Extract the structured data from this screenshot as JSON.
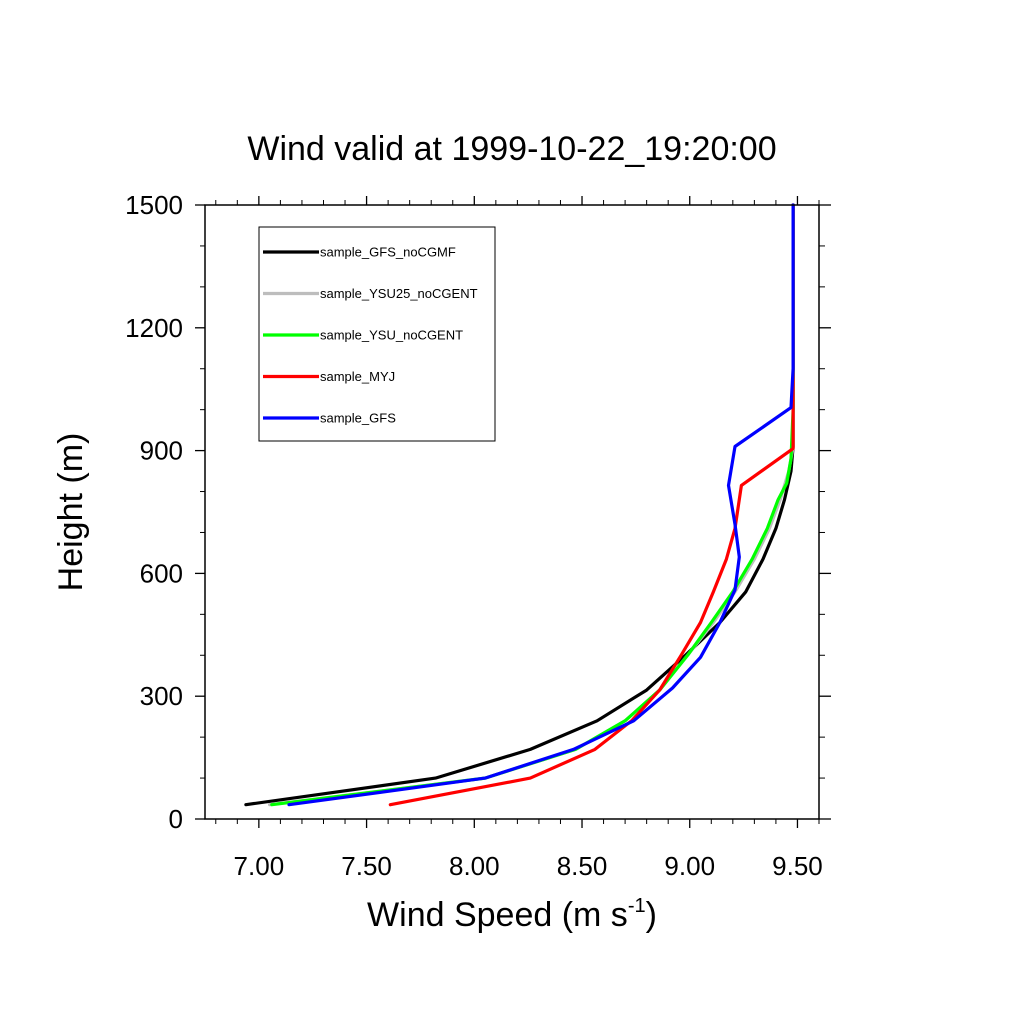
{
  "chart_data": {
    "type": "line",
    "title": "Wind valid at 1999-10-22_19:20:00",
    "xlabel_main": "Wind Speed (m s",
    "xlabel_sup": "-1",
    "xlabel_close": ")",
    "ylabel": "Height (m)",
    "xlim": [
      6.75,
      9.6
    ],
    "ylim": [
      0,
      1500
    ],
    "x_ticks": [
      7.0,
      7.5,
      8.0,
      8.5,
      9.0,
      9.5
    ],
    "x_tick_labels": [
      "7.00",
      "7.50",
      "8.00",
      "8.50",
      "9.00",
      "9.50"
    ],
    "y_ticks": [
      0,
      300,
      600,
      900,
      1200,
      1500
    ],
    "y_tick_labels": [
      "0",
      "300",
      "600",
      "900",
      "1200",
      "1500"
    ],
    "legend_position": "top-left",
    "series": [
      {
        "name": "sample_GFS_noCGMF",
        "color": "#000000",
        "points": [
          [
            6.94,
            35
          ],
          [
            7.82,
            100
          ],
          [
            8.26,
            170
          ],
          [
            8.57,
            240
          ],
          [
            8.8,
            315
          ],
          [
            8.98,
            400
          ],
          [
            9.14,
            480
          ],
          [
            9.26,
            555
          ],
          [
            9.34,
            635
          ],
          [
            9.4,
            710
          ],
          [
            9.44,
            780
          ],
          [
            9.47,
            850
          ],
          [
            9.48,
            910
          ],
          [
            9.48,
            1000
          ],
          [
            9.48,
            1100
          ],
          [
            9.48,
            1200
          ],
          [
            9.48,
            1300
          ],
          [
            9.48,
            1400
          ],
          [
            9.48,
            1500
          ]
        ]
      },
      {
        "name": "sample_YSU25_noCGENT",
        "color": "#bdbdbd",
        "points": [
          [
            7.05,
            35
          ],
          [
            8.05,
            100
          ],
          [
            8.47,
            170
          ],
          [
            8.7,
            240
          ],
          [
            8.86,
            315
          ],
          [
            8.99,
            400
          ],
          [
            9.11,
            480
          ],
          [
            9.21,
            555
          ],
          [
            9.3,
            635
          ],
          [
            9.37,
            710
          ],
          [
            9.42,
            780
          ],
          [
            9.46,
            850
          ],
          [
            9.48,
            910
          ],
          [
            9.48,
            1000
          ],
          [
            9.48,
            1100
          ],
          [
            9.48,
            1200
          ],
          [
            9.48,
            1300
          ],
          [
            9.48,
            1400
          ],
          [
            9.48,
            1500
          ]
        ]
      },
      {
        "name": "sample_YSU_noCGENT",
        "color": "#00ff00",
        "points": [
          [
            7.06,
            35
          ],
          [
            8.05,
            100
          ],
          [
            8.47,
            170
          ],
          [
            8.7,
            240
          ],
          [
            8.86,
            315
          ],
          [
            8.99,
            400
          ],
          [
            9.1,
            480
          ],
          [
            9.2,
            555
          ],
          [
            9.29,
            635
          ],
          [
            9.36,
            710
          ],
          [
            9.41,
            780
          ],
          [
            9.45,
            820
          ],
          [
            9.47,
            880
          ],
          [
            9.48,
            1000
          ],
          [
            9.48,
            1100
          ],
          [
            9.48,
            1200
          ],
          [
            9.48,
            1300
          ],
          [
            9.48,
            1400
          ],
          [
            9.48,
            1500
          ]
        ]
      },
      {
        "name": "sample_MYJ",
        "color": "#ff0000",
        "points": [
          [
            7.61,
            35
          ],
          [
            8.26,
            100
          ],
          [
            8.56,
            170
          ],
          [
            8.73,
            240
          ],
          [
            8.86,
            315
          ],
          [
            8.96,
            400
          ],
          [
            9.05,
            480
          ],
          [
            9.11,
            555
          ],
          [
            9.17,
            635
          ],
          [
            9.21,
            710
          ],
          [
            9.24,
            815
          ],
          [
            9.48,
            905
          ],
          [
            9.48,
            1000
          ],
          [
            9.48,
            1100
          ],
          [
            9.48,
            1200
          ],
          [
            9.48,
            1300
          ],
          [
            9.48,
            1400
          ],
          [
            9.48,
            1500
          ]
        ]
      },
      {
        "name": "sample_GFS",
        "color": "#0000ff",
        "points": [
          [
            7.14,
            35
          ],
          [
            8.05,
            100
          ],
          [
            8.46,
            170
          ],
          [
            8.74,
            240
          ],
          [
            8.92,
            320
          ],
          [
            9.05,
            395
          ],
          [
            9.14,
            480
          ],
          [
            9.21,
            560
          ],
          [
            9.23,
            640
          ],
          [
            9.21,
            720
          ],
          [
            9.18,
            815
          ],
          [
            9.21,
            910
          ],
          [
            9.47,
            1005
          ],
          [
            9.48,
            1100
          ],
          [
            9.48,
            1200
          ],
          [
            9.48,
            1300
          ],
          [
            9.48,
            1400
          ],
          [
            9.48,
            1500
          ]
        ]
      }
    ]
  }
}
